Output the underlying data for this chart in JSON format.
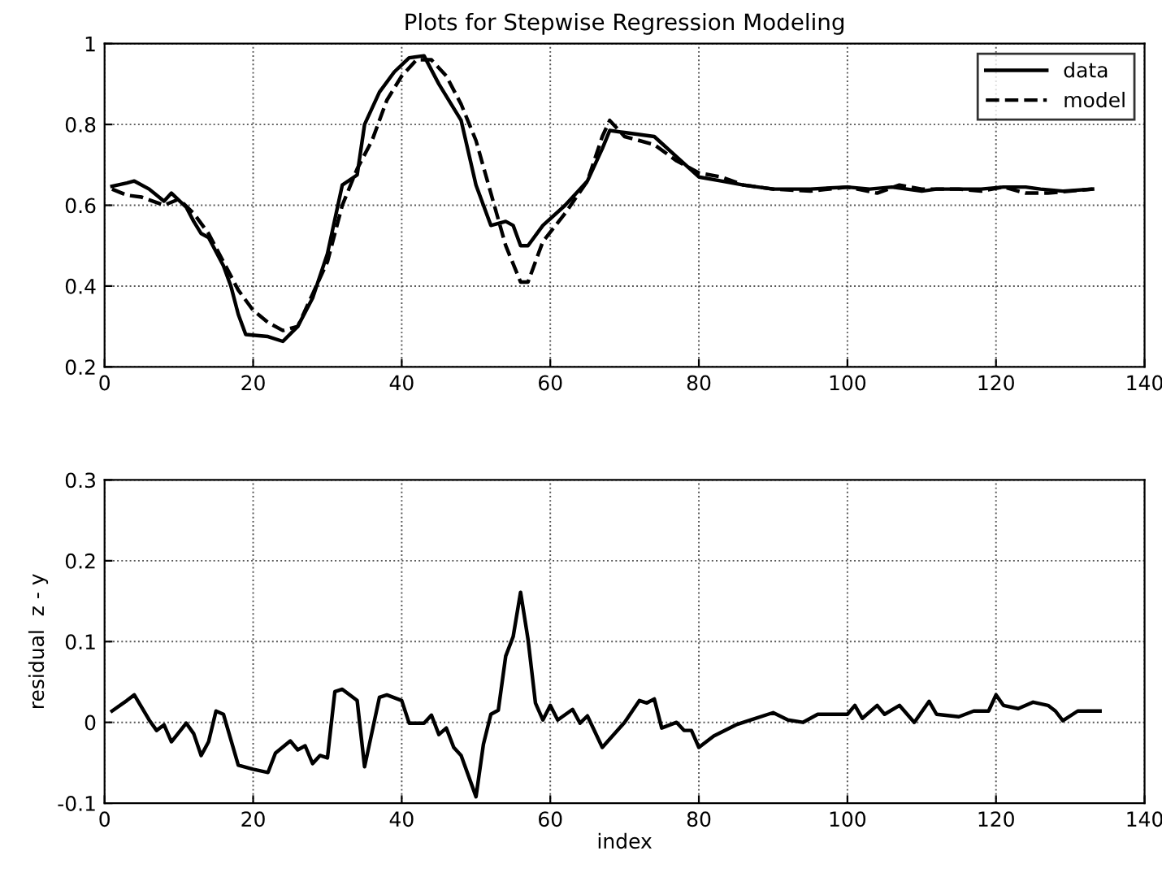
{
  "chart_data": [
    {
      "type": "line",
      "title": "Plots for Stepwise Regression Modeling",
      "xlim": [
        0,
        140
      ],
      "xticks": [
        0,
        20,
        40,
        60,
        80,
        100,
        120,
        140
      ],
      "ylim": [
        0.2,
        1
      ],
      "yticks": [
        0.2,
        0.4,
        0.6,
        0.8,
        1
      ],
      "grid": true,
      "legend": "top right",
      "marker": "none",
      "series": [
        {
          "name": "data",
          "color": "#000000",
          "line_style": "solid",
          "x": [
            1,
            3,
            4,
            6,
            8,
            9,
            11,
            12,
            13,
            14,
            16,
            17,
            18,
            19,
            22,
            24,
            26,
            28,
            30,
            32,
            34,
            35,
            37,
            39,
            41,
            43,
            45,
            48,
            50,
            51,
            52,
            54,
            55,
            56,
            57,
            59,
            62,
            65,
            67,
            68,
            70,
            74,
            77,
            80,
            83,
            86,
            90,
            95,
            100,
            103,
            106,
            108,
            110,
            112,
            115,
            118,
            121,
            124,
            126,
            129,
            133
          ],
          "values": [
            0.647,
            0.655,
            0.66,
            0.64,
            0.61,
            0.63,
            0.595,
            0.56,
            0.53,
            0.52,
            0.45,
            0.4,
            0.33,
            0.28,
            0.275,
            0.263,
            0.3,
            0.37,
            0.48,
            0.65,
            0.675,
            0.8,
            0.88,
            0.93,
            0.965,
            0.97,
            0.9,
            0.81,
            0.65,
            0.6,
            0.55,
            0.56,
            0.55,
            0.5,
            0.5,
            0.55,
            0.6,
            0.66,
            0.74,
            0.785,
            0.78,
            0.77,
            0.72,
            0.67,
            0.66,
            0.65,
            0.64,
            0.64,
            0.645,
            0.64,
            0.645,
            0.64,
            0.635,
            0.64,
            0.64,
            0.64,
            0.645,
            0.645,
            0.64,
            0.635,
            0.64
          ]
        },
        {
          "name": "model",
          "color": "#000000",
          "line_style": "dashed",
          "x": [
            1,
            3,
            5,
            8,
            10,
            12,
            14,
            16,
            18,
            20,
            22,
            24,
            26,
            28,
            30,
            32,
            34,
            36,
            38,
            40,
            42,
            44,
            46,
            48,
            50,
            52,
            54,
            56,
            57,
            59,
            62,
            65,
            67,
            68,
            70,
            74,
            77,
            80,
            83,
            86,
            90,
            95,
            100,
            104,
            107,
            110,
            115,
            118,
            121,
            124,
            127,
            130,
            133
          ],
          "values": [
            0.64,
            0.625,
            0.62,
            0.6,
            0.615,
            0.58,
            0.53,
            0.46,
            0.39,
            0.34,
            0.31,
            0.29,
            0.3,
            0.38,
            0.46,
            0.6,
            0.69,
            0.76,
            0.86,
            0.92,
            0.96,
            0.96,
            0.92,
            0.85,
            0.76,
            0.63,
            0.5,
            0.41,
            0.41,
            0.51,
            0.58,
            0.66,
            0.77,
            0.81,
            0.77,
            0.75,
            0.71,
            0.68,
            0.67,
            0.65,
            0.64,
            0.635,
            0.645,
            0.63,
            0.65,
            0.64,
            0.64,
            0.635,
            0.645,
            0.63,
            0.63,
            0.635,
            0.64
          ]
        }
      ]
    },
    {
      "type": "line",
      "xlabel": "index",
      "ylabel": "residual  z - y",
      "xlim": [
        0,
        140
      ],
      "xticks": [
        0,
        20,
        40,
        60,
        80,
        100,
        120,
        140
      ],
      "ylim": [
        -0.1,
        0.3
      ],
      "yticks": [
        -0.1,
        0,
        0.1,
        0.2,
        0.3
      ],
      "grid": true,
      "marker": "none",
      "series": [
        {
          "color": "#000000",
          "line_style": "solid",
          "x": [
            1,
            3,
            4,
            6,
            7,
            8,
            9,
            11,
            12,
            13,
            14,
            15,
            16,
            18,
            20,
            22,
            23,
            25,
            26,
            27,
            28,
            29,
            30,
            31,
            32,
            34,
            35,
            37,
            38,
            40,
            41,
            43,
            44,
            45,
            46,
            47,
            48,
            50,
            51,
            52,
            53,
            54,
            55,
            56,
            57,
            58,
            59,
            60,
            61,
            63,
            64,
            65,
            67,
            70,
            72,
            73,
            74,
            75,
            77,
            78,
            79,
            80,
            82,
            85,
            87,
            90,
            92,
            94,
            96,
            100,
            101,
            102,
            104,
            105,
            107,
            109,
            111,
            112,
            115,
            117,
            119,
            120,
            121,
            123,
            125,
            127,
            128,
            129,
            131,
            134
          ],
          "values": [
            0.014,
            0.027,
            0.034,
            0.003,
            -0.01,
            -0.003,
            -0.024,
            -0.001,
            -0.014,
            -0.041,
            -0.024,
            0.014,
            0.01,
            -0.053,
            -0.058,
            -0.062,
            -0.038,
            -0.023,
            -0.034,
            -0.029,
            -0.051,
            -0.041,
            -0.044,
            0.038,
            0.041,
            0.027,
            -0.055,
            0.031,
            0.034,
            0.027,
            -0.001,
            -0.001,
            0.009,
            -0.015,
            -0.007,
            -0.031,
            -0.041,
            -0.092,
            -0.027,
            0.01,
            0.015,
            0.082,
            0.106,
            0.161,
            0.103,
            0.024,
            0.003,
            0.021,
            0.003,
            0.016,
            -0.001,
            0.008,
            -0.031,
            0,
            0.027,
            0.024,
            0.029,
            -0.007,
            0,
            -0.01,
            -0.01,
            -0.031,
            -0.017,
            -0.003,
            0.003,
            0.012,
            0.003,
            0,
            0.01,
            0.01,
            0.021,
            0.005,
            0.021,
            0.01,
            0.021,
            0,
            0.026,
            0.01,
            0.007,
            0.014,
            0.014,
            0.034,
            0.021,
            0.017,
            0.025,
            0.021,
            0.014,
            0.002,
            0.014,
            0.014
          ]
        }
      ]
    }
  ]
}
